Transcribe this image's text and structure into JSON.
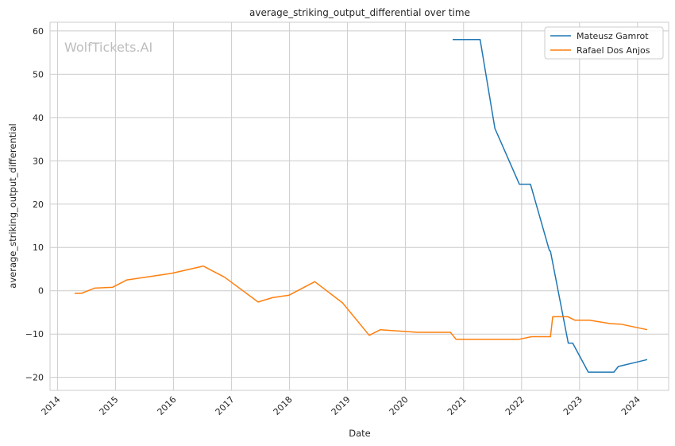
{
  "chart_data": {
    "type": "line",
    "title": "average_striking_output_differential over time",
    "xlabel": "Date",
    "ylabel": "average_striking_output_differential",
    "watermark": "WolfTickets.AI",
    "xlim": [
      "2013-11-15",
      "2024-07-15"
    ],
    "ylim": [
      -23,
      62
    ],
    "x_ticks": [
      "2014",
      "2015",
      "2016",
      "2017",
      "2018",
      "2019",
      "2020",
      "2021",
      "2022",
      "2023",
      "2024"
    ],
    "y_ticks": [
      -20,
      -10,
      0,
      10,
      20,
      30,
      40,
      50,
      60
    ],
    "y_tick_labels": [
      "−20",
      "−10",
      "0",
      "10",
      "20",
      "30",
      "40",
      "50",
      "60"
    ],
    "grid": true,
    "legend_position": "top-right",
    "series": [
      {
        "name": "Mateusz Gamrot",
        "color": "#1f77b4",
        "points": [
          [
            "2020-10-24",
            58
          ],
          [
            "2021-04-15",
            58
          ],
          [
            "2021-07-17",
            37.5
          ],
          [
            "2021-12-18",
            24.6
          ],
          [
            "2022-02-26",
            24.6
          ],
          [
            "2022-06-25",
            9.3
          ],
          [
            "2022-07-02",
            9.1
          ],
          [
            "2022-10-22",
            -12.1
          ],
          [
            "2022-11-19",
            -12.1
          ],
          [
            "2023-02-25",
            -18.8
          ],
          [
            "2023-08-05",
            -18.8
          ],
          [
            "2023-09-02",
            -17.5
          ],
          [
            "2024-03-02",
            -15.9
          ]
        ]
      },
      {
        "name": "Rafael Dos Anjos",
        "color": "#ff7f0e",
        "points": [
          [
            "2014-04-19",
            -0.6
          ],
          [
            "2014-05-31",
            -0.6
          ],
          [
            "2014-08-23",
            0.6
          ],
          [
            "2014-12-13",
            0.8
          ],
          [
            "2015-03-14",
            2.5
          ],
          [
            "2015-12-19",
            4.0
          ],
          [
            "2016-07-07",
            5.7
          ],
          [
            "2016-11-19",
            3.1
          ],
          [
            "2017-06-17",
            -2.6
          ],
          [
            "2017-09-16",
            -1.6
          ],
          [
            "2017-12-30",
            -1.0
          ],
          [
            "2018-06-09",
            2.1
          ],
          [
            "2018-12-01",
            -2.8
          ],
          [
            "2019-05-18",
            -10.3
          ],
          [
            "2019-07-27",
            -9.0
          ],
          [
            "2020-03-14",
            -9.6
          ],
          [
            "2020-10-10",
            -9.6
          ],
          [
            "2020-11-14",
            -11.2
          ],
          [
            "2021-12-18",
            -11.2
          ],
          [
            "2022-03-05",
            -10.6
          ],
          [
            "2022-07-02",
            -10.6
          ],
          [
            "2022-07-16",
            -6.0
          ],
          [
            "2022-10-20",
            -6.0
          ],
          [
            "2022-12-03",
            -6.8
          ],
          [
            "2023-03-04",
            -6.8
          ],
          [
            "2023-07-15",
            -7.6
          ],
          [
            "2023-09-16",
            -7.7
          ],
          [
            "2024-03-02",
            -9.0
          ]
        ]
      }
    ]
  }
}
